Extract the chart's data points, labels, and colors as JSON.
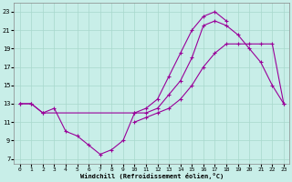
{
  "xlabel": "Windchill (Refroidissement éolien,°C)",
  "background_color": "#c8eee8",
  "grid_color": "#a8d8cc",
  "line_color": "#990099",
  "xlim": [
    -0.5,
    23.5
  ],
  "ylim": [
    6.5,
    24.0
  ],
  "xticks": [
    0,
    1,
    2,
    3,
    4,
    5,
    6,
    7,
    8,
    9,
    10,
    11,
    12,
    13,
    14,
    15,
    16,
    17,
    18,
    19,
    20,
    21,
    22,
    23
  ],
  "yticks": [
    7,
    9,
    11,
    13,
    15,
    17,
    19,
    21,
    23
  ],
  "line1_x": [
    0,
    1,
    2,
    3,
    4,
    5,
    6,
    7,
    8,
    9,
    10,
    11,
    12,
    13,
    14,
    15,
    16,
    17,
    18,
    19,
    20,
    21,
    22,
    23
  ],
  "line1_y": [
    13,
    13,
    12,
    12.5,
    10,
    9.5,
    8.5,
    7.5,
    8,
    9,
    12,
    12,
    12.5,
    14,
    15.5,
    18,
    21.5,
    22,
    21.5,
    20.5,
    19,
    17.5,
    15,
    13
  ],
  "line2_x": [
    0,
    1,
    2,
    10,
    11,
    12,
    13,
    14,
    15,
    16,
    17,
    18
  ],
  "line2_y": [
    13,
    13,
    12,
    12,
    12.5,
    13.5,
    16,
    18.5,
    21,
    22.5,
    23,
    22
  ],
  "line3_x": [
    10,
    11,
    12,
    13,
    14,
    15,
    16,
    17,
    18,
    19,
    20,
    21,
    22,
    23
  ],
  "line3_y": [
    11,
    11.5,
    12,
    12.5,
    13.5,
    15,
    17,
    18.5,
    19.5,
    19.5,
    19.5,
    19.5,
    19.5,
    13
  ]
}
